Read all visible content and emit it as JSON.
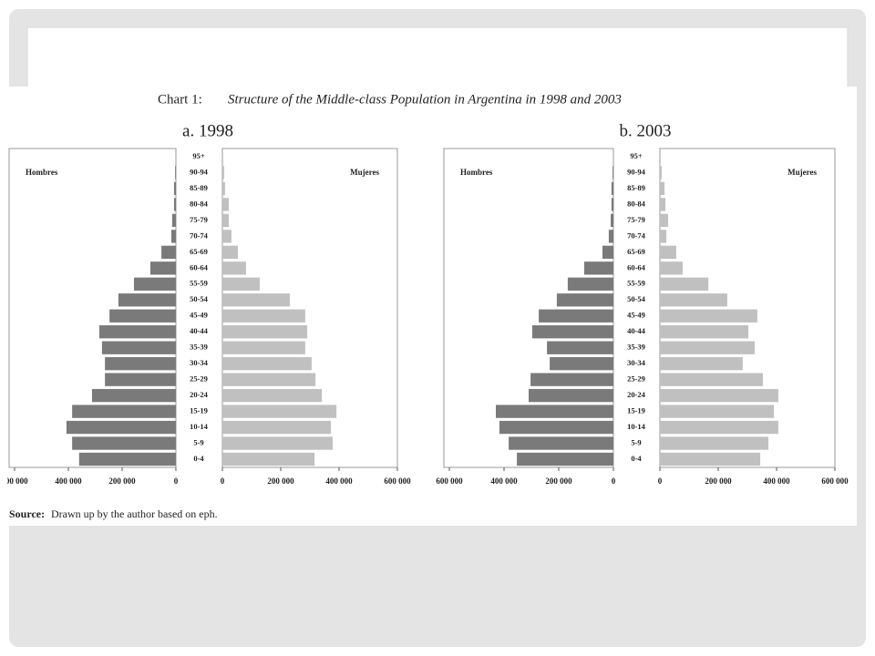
{
  "title_lead": "Chart 1:",
  "title": "Structure of the Middle-class Population in Argentina in 1998 and 2003",
  "source_label": "Source:",
  "source": "Drawn up by the author based on eph.",
  "chart_data": [
    {
      "type": "pyramid",
      "title": "a. 1998",
      "categories": [
        "0-4",
        "5-9",
        "10-14",
        "15-19",
        "20-24",
        "25-29",
        "30-34",
        "35-39",
        "40-44",
        "45-49",
        "50-54",
        "55-59",
        "60-64",
        "65-69",
        "70-74",
        "75-79",
        "80-84",
        "85-89",
        "90-94",
        "95+"
      ],
      "series": [
        {
          "name": "Hombres",
          "color": "#7a7a7a",
          "values": [
            360000,
            386000,
            407000,
            386000,
            312000,
            264000,
            264000,
            275000,
            285000,
            247000,
            214000,
            156000,
            95000,
            54000,
            17000,
            14000,
            7000,
            7000,
            3000,
            0
          ]
        },
        {
          "name": "Mujeres",
          "color": "#c0c0c0",
          "values": [
            316000,
            378000,
            372000,
            391000,
            341000,
            319000,
            306000,
            284000,
            291000,
            284000,
            231000,
            128000,
            81000,
            53000,
            31000,
            22000,
            22000,
            9000,
            6000,
            0
          ]
        }
      ],
      "xlim": [
        0,
        600000
      ],
      "xticks": [
        {
          "value": 0,
          "label": "0"
        },
        {
          "value": 200000,
          "label": "200 000"
        },
        {
          "value": 400000,
          "label": "400 000"
        },
        {
          "value": 600000,
          "label": "600 000"
        }
      ]
    },
    {
      "type": "pyramid",
      "title": "b. 2003",
      "categories": [
        "0-4",
        "5-9",
        "10-14",
        "15-19",
        "20-24",
        "25-29",
        "30-34",
        "35-39",
        "40-44",
        "45-49",
        "50-54",
        "55-59",
        "60-64",
        "65-69",
        "70-74",
        "75-79",
        "80-84",
        "85-89",
        "90-94",
        "95+"
      ],
      "series": [
        {
          "name": "Hombres",
          "color": "#7a7a7a",
          "values": [
            353000,
            383000,
            417000,
            430000,
            310000,
            303000,
            233000,
            243000,
            297000,
            273000,
            207000,
            167000,
            107000,
            40000,
            17000,
            10000,
            7000,
            7000,
            3000,
            0
          ]
        },
        {
          "name": "Mujeres",
          "color": "#c0c0c0",
          "values": [
            344000,
            372000,
            406000,
            391000,
            406000,
            353000,
            284000,
            325000,
            303000,
            334000,
            231000,
            166000,
            78000,
            56000,
            22000,
            28000,
            19000,
            16000,
            6000,
            0
          ]
        }
      ],
      "xlim": [
        0,
        600000
      ],
      "xticks": [
        {
          "value": 0,
          "label": "0"
        },
        {
          "value": 200000,
          "label": "200 000"
        },
        {
          "value": 400000,
          "label": "400 000"
        },
        {
          "value": 600000,
          "label": "600 000"
        }
      ]
    }
  ]
}
